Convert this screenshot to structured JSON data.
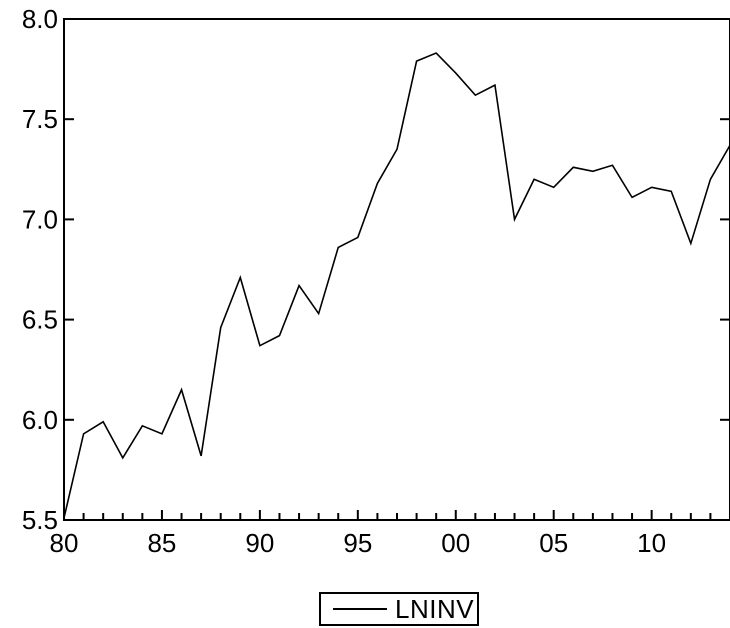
{
  "chart_data": {
    "type": "line",
    "title": "",
    "xlabel": "",
    "ylabel": "",
    "xlim": [
      1980,
      2014
    ],
    "ylim": [
      5.5,
      8.0
    ],
    "x_ticks": [
      {
        "value": 1980,
        "label": "80"
      },
      {
        "value": 1985,
        "label": "85"
      },
      {
        "value": 1990,
        "label": "90"
      },
      {
        "value": 1995,
        "label": "95"
      },
      {
        "value": 2000,
        "label": "00"
      },
      {
        "value": 2005,
        "label": "05"
      },
      {
        "value": 2010,
        "label": "10"
      }
    ],
    "y_ticks": [
      {
        "value": 5.5,
        "label": "5.5"
      },
      {
        "value": 6.0,
        "label": "6.0"
      },
      {
        "value": 6.5,
        "label": "6.5"
      },
      {
        "value": 7.0,
        "label": "7.0"
      },
      {
        "value": 7.5,
        "label": "7.5"
      },
      {
        "value": 8.0,
        "label": "8.0"
      }
    ],
    "grid": false,
    "legend_position": "bottom-center",
    "x": [
      1980,
      1981,
      1982,
      1983,
      1984,
      1985,
      1986,
      1987,
      1988,
      1989,
      1990,
      1991,
      1992,
      1993,
      1994,
      1995,
      1996,
      1997,
      1998,
      1999,
      2000,
      2001,
      2002,
      2003,
      2004,
      2005,
      2006,
      2007,
      2008,
      2009,
      2010,
      2011,
      2012,
      2013,
      2014
    ],
    "series": [
      {
        "name": "LNINV",
        "color": "#000000",
        "values": [
          5.51,
          5.93,
          5.99,
          5.81,
          5.97,
          5.93,
          6.15,
          5.82,
          6.46,
          6.71,
          6.37,
          6.42,
          6.67,
          6.53,
          6.86,
          6.91,
          7.18,
          7.35,
          7.79,
          7.83,
          7.73,
          7.62,
          7.67,
          7.0,
          7.2,
          7.16,
          7.26,
          7.24,
          7.27,
          7.11,
          7.16,
          7.14,
          6.88,
          7.2,
          7.37
        ]
      }
    ]
  }
}
